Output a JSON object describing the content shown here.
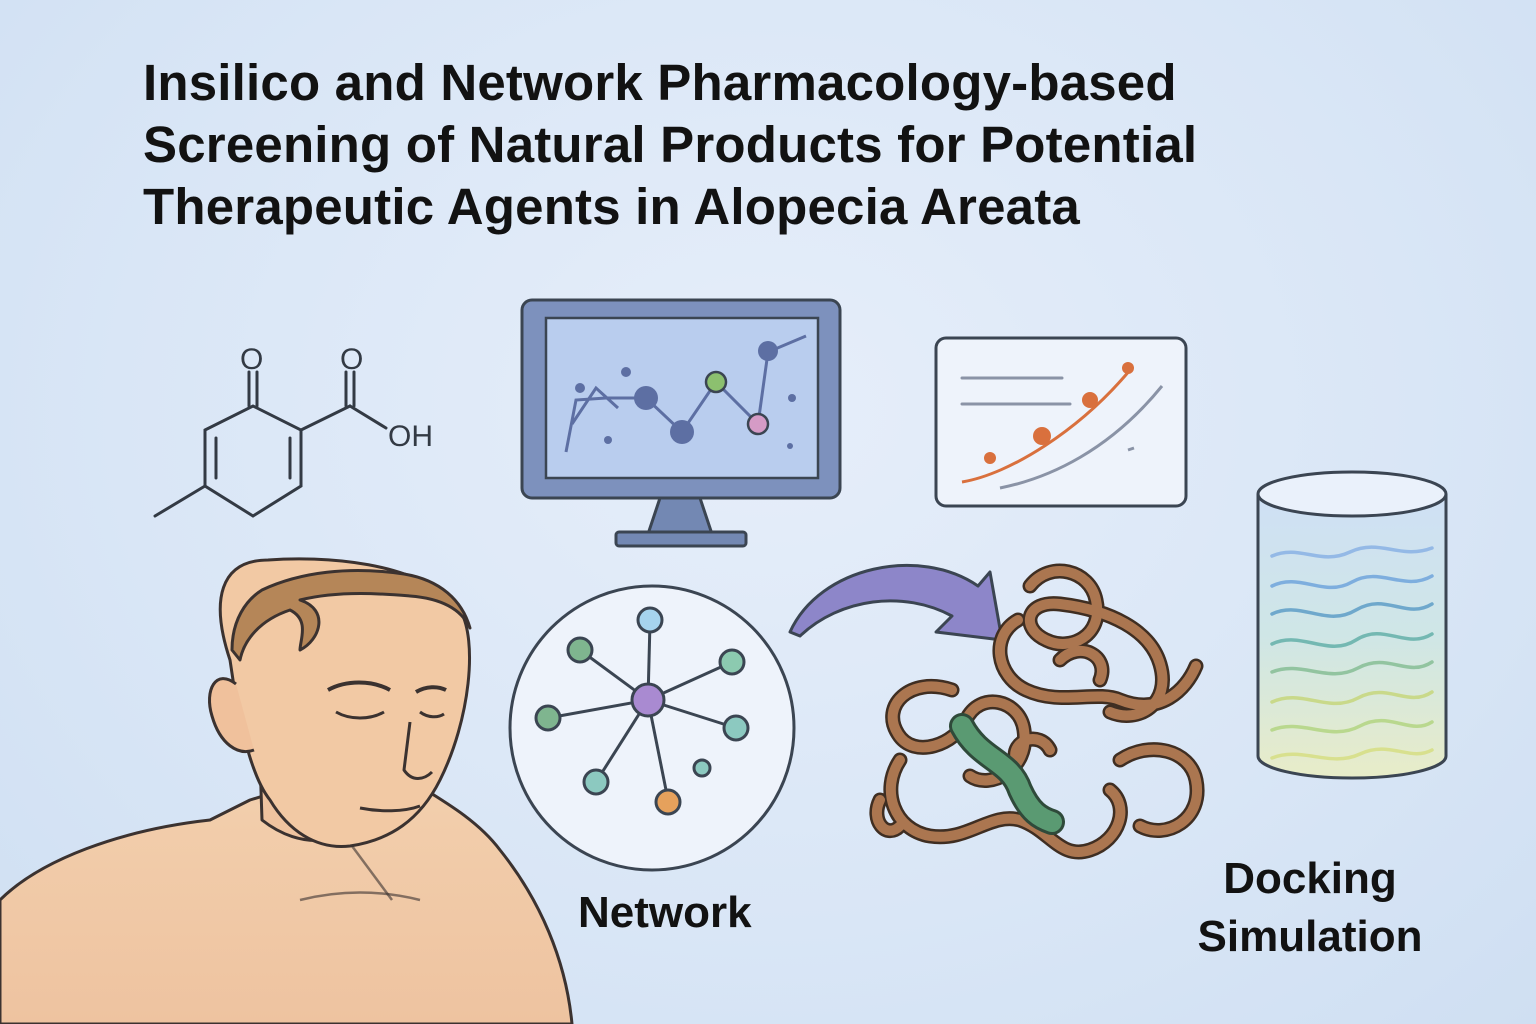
{
  "title": {
    "lines": [
      "Insilico and Network Pharmacology-based",
      "Screening of Natural Products for Potential",
      "Therapeutic Agents in Alopecia Areata"
    ]
  },
  "molecule": {
    "o_left": "O",
    "o_right": "O",
    "oh": "OH"
  },
  "network_label": "Network",
  "docking_label": {
    "line1": "Docking",
    "line2": "Simulation"
  },
  "colors": {
    "outline": "#3b4552",
    "monitor_frame": "#7388b3",
    "monitor_screen": "#b8cbec",
    "network_hub": "#a98ad1",
    "node_green": "#7fb58f",
    "node_blue": "#a6d4ee",
    "node_teal": "#8cc9c0",
    "node_orange": "#e6a15c",
    "protein_brown": "#a9744c",
    "ligand_green": "#5a9a72",
    "arrow_purple": "#8d86c9",
    "skin": "#f2c9a4",
    "hair": "#b58658",
    "plot_orange": "#d9703d"
  }
}
